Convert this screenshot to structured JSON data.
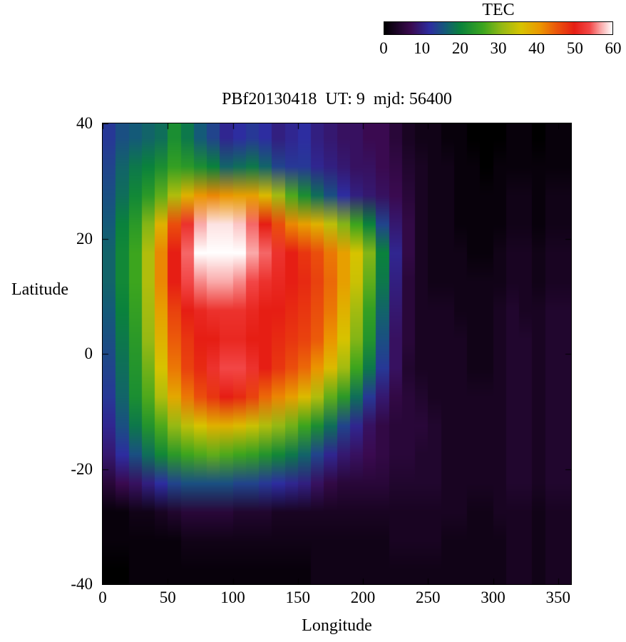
{
  "colorbar": {
    "title": "TEC",
    "min": 0,
    "max": 60,
    "ticks": [
      0,
      10,
      20,
      30,
      40,
      50,
      60
    ],
    "stops": [
      {
        "v": 0,
        "c": "#000000"
      },
      {
        "v": 7,
        "c": "#3A0A50"
      },
      {
        "v": 12,
        "c": "#2D2DA0"
      },
      {
        "v": 16,
        "c": "#145A78"
      },
      {
        "v": 20,
        "c": "#0A823C"
      },
      {
        "v": 26,
        "c": "#3CA51E"
      },
      {
        "v": 31,
        "c": "#96B914"
      },
      {
        "v": 36,
        "c": "#D7C300"
      },
      {
        "v": 41,
        "c": "#EB9600"
      },
      {
        "v": 45,
        "c": "#EB5A0A"
      },
      {
        "v": 50,
        "c": "#E61E14"
      },
      {
        "v": 54,
        "c": "#F24646"
      },
      {
        "v": 57,
        "c": "#FAAAAA"
      },
      {
        "v": 60,
        "c": "#FFFFFF"
      }
    ]
  },
  "chart_data": {
    "type": "heatmap",
    "title": "PBf20130418  UT: 9  mjd: 56400",
    "xlabel": "Longitude",
    "ylabel": "Latitude",
    "colorbar_label": "TEC",
    "xlim": [
      0,
      360
    ],
    "ylim": [
      -40,
      40
    ],
    "zlim": [
      0,
      60
    ],
    "x_tick_labels": [
      0,
      50,
      100,
      150,
      200,
      250,
      300,
      350
    ],
    "y_tick_labels": [
      40,
      20,
      0,
      -20,
      -40
    ],
    "grid": {
      "x_center_start": 5,
      "x_step": 10,
      "y_center_start": 37.5,
      "y_step": -5,
      "rows": 16,
      "cols": 36
    },
    "values": [
      [
        13,
        15,
        16,
        17,
        18,
        22,
        19,
        16,
        14,
        11,
        12,
        13,
        12,
        10,
        11,
        12,
        10,
        9,
        8,
        8,
        7,
        7,
        5,
        3,
        2,
        2,
        1,
        1,
        0,
        0,
        0,
        1,
        1,
        0,
        1,
        1
      ],
      [
        14,
        17,
        19,
        20,
        22,
        25,
        24,
        22,
        20,
        17,
        18,
        19,
        17,
        14,
        13,
        13,
        11,
        10,
        9,
        8,
        8,
        7,
        6,
        4,
        3,
        2,
        2,
        1,
        1,
        0,
        1,
        1,
        1,
        1,
        1,
        1
      ],
      [
        15,
        18,
        21,
        24,
        28,
        33,
        38,
        41,
        42,
        41,
        40,
        40,
        37,
        32,
        27,
        22,
        18,
        15,
        12,
        10,
        9,
        8,
        7,
        5,
        3,
        2,
        2,
        1,
        1,
        1,
        1,
        2,
        2,
        1,
        2,
        2
      ],
      [
        16,
        20,
        24,
        30,
        38,
        46,
        52,
        57,
        59,
        59,
        58,
        55,
        50,
        46,
        42,
        40,
        38,
        34,
        30,
        26,
        20,
        14,
        9,
        6,
        3,
        2,
        2,
        1,
        1,
        1,
        1,
        2,
        2,
        1,
        2,
        2
      ],
      [
        17,
        21,
        26,
        33,
        42,
        50,
        55,
        60,
        60,
        60,
        60,
        57,
        55,
        52,
        50,
        48,
        46,
        43,
        40,
        36,
        30,
        20,
        11,
        6,
        3,
        2,
        2,
        2,
        1,
        1,
        2,
        3,
        3,
        2,
        3,
        3
      ],
      [
        17,
        21,
        26,
        33,
        42,
        50,
        54,
        56,
        57,
        57,
        56,
        54,
        52,
        51,
        50,
        49,
        47,
        44,
        40,
        35,
        28,
        19,
        10,
        5,
        3,
        2,
        2,
        2,
        2,
        2,
        2,
        3,
        3,
        2,
        3,
        3
      ],
      [
        16,
        20,
        25,
        32,
        40,
        47,
        50,
        51,
        52,
        52,
        52,
        51,
        50,
        50,
        49,
        48,
        46,
        43,
        38,
        32,
        25,
        17,
        9,
        5,
        3,
        3,
        3,
        2,
        2,
        2,
        3,
        4,
        3,
        3,
        4,
        4
      ],
      [
        15,
        19,
        24,
        31,
        38,
        45,
        48,
        50,
        50,
        51,
        51,
        50,
        50,
        49,
        48,
        47,
        45,
        41,
        36,
        30,
        23,
        15,
        8,
        5,
        3,
        3,
        3,
        3,
        2,
        2,
        3,
        4,
        4,
        3,
        4,
        4
      ],
      [
        14,
        18,
        23,
        29,
        36,
        43,
        47,
        49,
        52,
        54,
        54,
        52,
        50,
        48,
        46,
        44,
        41,
        37,
        32,
        26,
        19,
        13,
        8,
        4,
        3,
        3,
        3,
        3,
        2,
        2,
        3,
        4,
        4,
        3,
        4,
        4
      ],
      [
        13,
        17,
        22,
        27,
        33,
        39,
        43,
        46,
        48,
        50,
        49,
        47,
        44,
        42,
        40,
        37,
        33,
        28,
        24,
        18,
        13,
        9,
        6,
        5,
        4,
        3,
        3,
        3,
        3,
        3,
        3,
        4,
        4,
        3,
        4,
        4
      ],
      [
        11,
        15,
        19,
        23,
        27,
        31,
        34,
        36,
        38,
        38,
        37,
        35,
        33,
        31,
        29,
        26,
        22,
        18,
        14,
        11,
        8,
        6,
        5,
        5,
        5,
        4,
        3,
        3,
        3,
        3,
        3,
        4,
        4,
        3,
        4,
        4
      ],
      [
        9,
        12,
        15,
        18,
        21,
        24,
        26,
        27,
        28,
        27,
        26,
        25,
        23,
        21,
        19,
        17,
        14,
        11,
        9,
        8,
        7,
        6,
        5,
        5,
        4,
        4,
        3,
        3,
        3,
        3,
        3,
        4,
        4,
        3,
        4,
        4
      ],
      [
        5,
        7,
        8,
        10,
        12,
        14,
        15,
        15,
        15,
        15,
        14,
        14,
        13,
        12,
        11,
        10,
        8,
        6,
        5,
        5,
        5,
        5,
        4,
        4,
        4,
        4,
        3,
        3,
        3,
        3,
        3,
        4,
        4,
        3,
        4,
        4
      ],
      [
        1,
        1,
        2,
        2,
        3,
        4,
        5,
        5,
        5,
        5,
        4,
        4,
        4,
        3,
        3,
        3,
        3,
        3,
        3,
        3,
        3,
        3,
        3,
        3,
        3,
        3,
        3,
        3,
        2,
        2,
        3,
        3,
        3,
        2,
        3,
        3
      ],
      [
        1,
        1,
        1,
        1,
        1,
        1,
        2,
        2,
        2,
        2,
        2,
        2,
        2,
        2,
        2,
        2,
        2,
        2,
        2,
        2,
        2,
        2,
        3,
        3,
        3,
        3,
        2,
        2,
        2,
        2,
        2,
        3,
        3,
        2,
        3,
        3
      ],
      [
        0,
        0,
        1,
        1,
        1,
        1,
        1,
        1,
        1,
        1,
        1,
        1,
        1,
        1,
        1,
        1,
        2,
        2,
        2,
        2,
        2,
        2,
        2,
        2,
        2,
        2,
        2,
        2,
        2,
        2,
        2,
        3,
        3,
        2,
        3,
        3
      ]
    ]
  }
}
